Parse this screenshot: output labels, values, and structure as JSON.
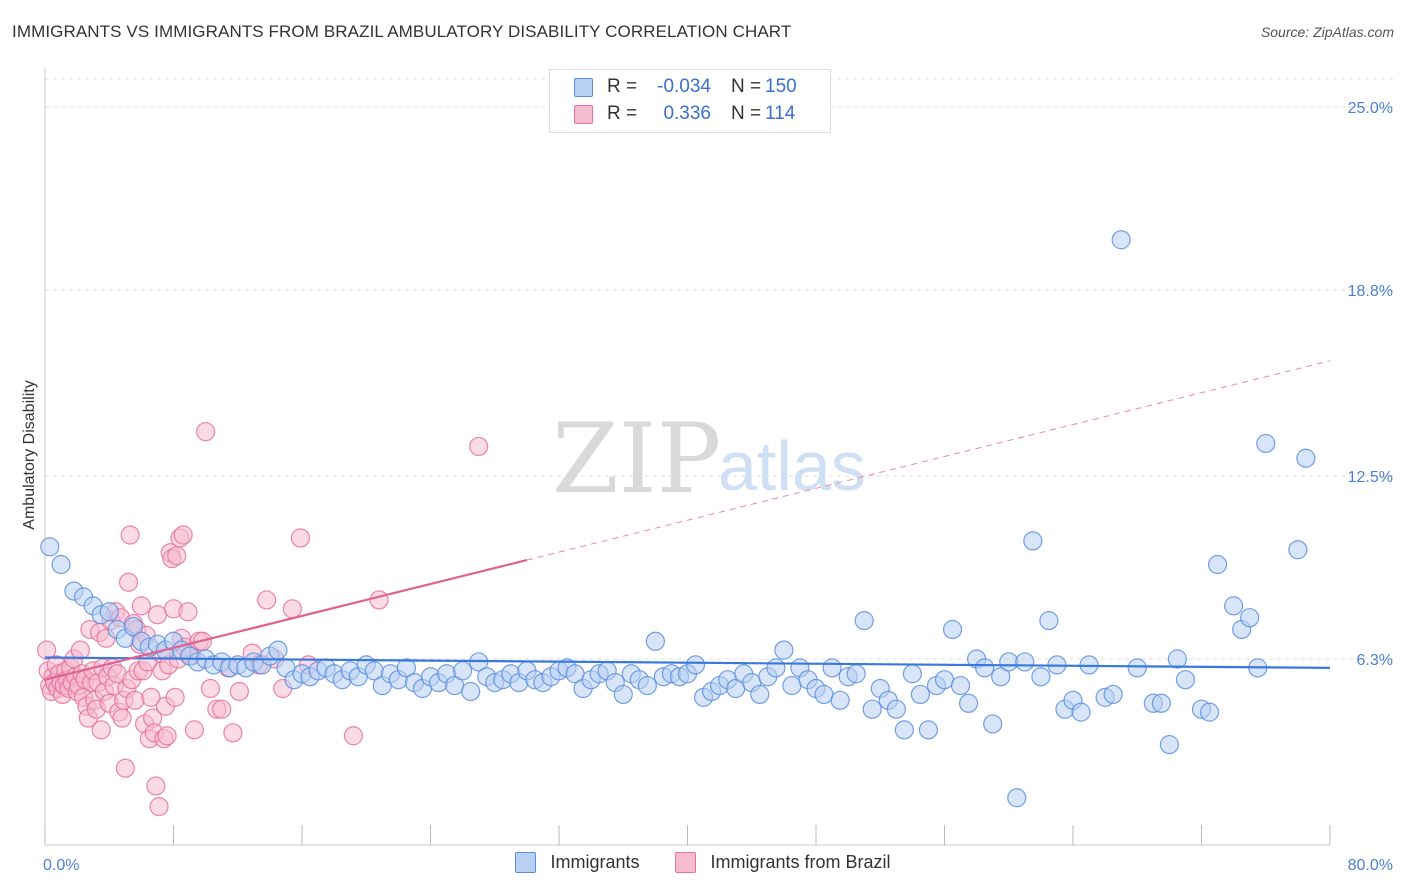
{
  "title": "IMMIGRANTS VS IMMIGRANTS FROM BRAZIL AMBULATORY DISABILITY CORRELATION CHART",
  "source": "Source: ZipAtlas.com",
  "watermark": {
    "part1": "ZIP",
    "part2": "atlas"
  },
  "legend": {
    "rows": [
      {
        "r_label": "R =",
        "r_value": "-0.034",
        "n_label": "N =",
        "n_value": "150"
      },
      {
        "r_label": "R =",
        "r_value": "0.336",
        "n_label": "N =",
        "n_value": "114"
      }
    ]
  },
  "colors": {
    "blue": "#5a8fe0",
    "blue_fill": "#b8d0f2",
    "pink": "#e8709a",
    "pink_fill": "#f5bcd0",
    "grid": "#dddddd",
    "axis_text": "#4a7fd4"
  },
  "chart_data": {
    "type": "scatter",
    "title": "IMMIGRANTS VS IMMIGRANTS FROM BRAZIL AMBULATORY DISABILITY CORRELATION CHART",
    "xlabel": "",
    "ylabel": "Ambulatory Disability",
    "xlim": [
      0,
      80
    ],
    "ylim": [
      0,
      26.25
    ],
    "x_tick_labels": [
      "0.0%",
      "80.0%"
    ],
    "y_ticks": [
      6.3,
      12.5,
      18.8,
      25.0
    ],
    "y_tick_labels": [
      "6.3%",
      "12.5%",
      "18.8%",
      "25.0%"
    ],
    "legend_labels": [
      "Immigrants",
      "Immigrants from Brazil"
    ],
    "series": [
      {
        "name": "Immigrants",
        "r": -0.034,
        "n": 150,
        "trend": {
          "x": [
            0,
            80
          ],
          "y": [
            6.35,
            6.0
          ],
          "dashed_from": null
        },
        "points": [
          [
            0.3,
            10.1
          ],
          [
            1,
            9.5
          ],
          [
            1.8,
            8.6
          ],
          [
            2.4,
            8.4
          ],
          [
            3,
            8.1
          ],
          [
            3.5,
            7.8
          ],
          [
            4,
            7.9
          ],
          [
            4.5,
            7.3
          ],
          [
            5,
            7.0
          ],
          [
            5.5,
            7.4
          ],
          [
            6,
            6.9
          ],
          [
            6.5,
            6.7
          ],
          [
            7,
            6.8
          ],
          [
            7.5,
            6.6
          ],
          [
            8,
            6.9
          ],
          [
            8.5,
            6.6
          ],
          [
            9,
            6.4
          ],
          [
            9.5,
            6.2
          ],
          [
            10,
            6.3
          ],
          [
            10.5,
            6.1
          ],
          [
            11,
            6.2
          ],
          [
            11.5,
            6.0
          ],
          [
            12,
            6.1
          ],
          [
            12.5,
            6.0
          ],
          [
            13,
            6.2
          ],
          [
            13.5,
            6.1
          ],
          [
            14,
            6.4
          ],
          [
            14.5,
            6.6
          ],
          [
            15,
            6.0
          ],
          [
            15.5,
            5.6
          ],
          [
            16,
            5.8
          ],
          [
            16.5,
            5.7
          ],
          [
            17,
            5.9
          ],
          [
            17.5,
            6.0
          ],
          [
            18,
            5.8
          ],
          [
            18.5,
            5.6
          ],
          [
            19,
            5.9
          ],
          [
            19.5,
            5.7
          ],
          [
            20,
            6.1
          ],
          [
            20.5,
            5.9
          ],
          [
            21,
            5.4
          ],
          [
            21.5,
            5.8
          ],
          [
            22,
            5.6
          ],
          [
            22.5,
            6.0
          ],
          [
            23,
            5.5
          ],
          [
            23.5,
            5.3
          ],
          [
            24,
            5.7
          ],
          [
            24.5,
            5.5
          ],
          [
            25,
            5.8
          ],
          [
            25.5,
            5.4
          ],
          [
            26,
            5.9
          ],
          [
            26.5,
            5.2
          ],
          [
            27,
            6.2
          ],
          [
            27.5,
            5.7
          ],
          [
            28,
            5.5
          ],
          [
            28.5,
            5.6
          ],
          [
            29,
            5.8
          ],
          [
            29.5,
            5.5
          ],
          [
            30,
            5.9
          ],
          [
            30.5,
            5.6
          ],
          [
            31,
            5.5
          ],
          [
            31.5,
            5.7
          ],
          [
            32,
            5.9
          ],
          [
            32.5,
            6.0
          ],
          [
            33,
            5.8
          ],
          [
            33.5,
            5.3
          ],
          [
            34,
            5.6
          ],
          [
            34.5,
            5.8
          ],
          [
            35,
            5.9
          ],
          [
            35.5,
            5.5
          ],
          [
            36,
            5.1
          ],
          [
            36.5,
            5.8
          ],
          [
            37,
            5.6
          ],
          [
            37.5,
            5.4
          ],
          [
            38,
            6.9
          ],
          [
            38.5,
            5.7
          ],
          [
            39,
            5.8
          ],
          [
            39.5,
            5.7
          ],
          [
            40,
            5.8
          ],
          [
            40.5,
            6.1
          ],
          [
            41,
            5.0
          ],
          [
            41.5,
            5.2
          ],
          [
            42,
            5.4
          ],
          [
            42.5,
            5.6
          ],
          [
            43,
            5.3
          ],
          [
            43.5,
            5.8
          ],
          [
            44,
            5.5
          ],
          [
            44.5,
            5.1
          ],
          [
            45,
            5.7
          ],
          [
            45.5,
            6.0
          ],
          [
            46,
            6.6
          ],
          [
            46.5,
            5.4
          ],
          [
            47,
            6.0
          ],
          [
            47.5,
            5.6
          ],
          [
            48,
            5.3
          ],
          [
            48.5,
            5.1
          ],
          [
            49,
            6.0
          ],
          [
            49.5,
            4.9
          ],
          [
            50,
            5.7
          ],
          [
            50.5,
            5.8
          ],
          [
            51,
            7.6
          ],
          [
            51.5,
            4.6
          ],
          [
            52,
            5.3
          ],
          [
            52.5,
            4.9
          ],
          [
            53,
            4.6
          ],
          [
            53.5,
            3.9
          ],
          [
            54,
            5.8
          ],
          [
            54.5,
            5.1
          ],
          [
            55,
            3.9
          ],
          [
            55.5,
            5.4
          ],
          [
            56,
            5.6
          ],
          [
            56.5,
            7.3
          ],
          [
            57,
            5.4
          ],
          [
            57.5,
            4.8
          ],
          [
            58,
            6.3
          ],
          [
            58.5,
            6.0
          ],
          [
            59,
            4.1
          ],
          [
            59.5,
            5.7
          ],
          [
            60,
            6.2
          ],
          [
            60.5,
            1.6
          ],
          [
            61,
            6.2
          ],
          [
            61.5,
            10.3
          ],
          [
            62,
            5.7
          ],
          [
            62.5,
            7.6
          ],
          [
            63,
            6.1
          ],
          [
            63.5,
            4.6
          ],
          [
            64,
            4.9
          ],
          [
            64.5,
            4.5
          ],
          [
            65,
            6.1
          ],
          [
            66,
            5.0
          ],
          [
            66.5,
            5.1
          ],
          [
            67,
            20.5
          ],
          [
            68,
            6.0
          ],
          [
            69,
            4.8
          ],
          [
            69.5,
            4.8
          ],
          [
            70,
            3.4
          ],
          [
            70.5,
            6.3
          ],
          [
            71,
            5.6
          ],
          [
            72,
            4.6
          ],
          [
            72.5,
            4.5
          ],
          [
            73,
            9.5
          ],
          [
            74,
            8.1
          ],
          [
            74.5,
            7.3
          ],
          [
            75,
            7.7
          ],
          [
            75.5,
            6.0
          ],
          [
            76,
            13.6
          ],
          [
            78,
            10.0
          ],
          [
            78.5,
            13.1
          ]
        ]
      },
      {
        "name": "Immigrants from Brazil",
        "r": 0.336,
        "n": 114,
        "trend": {
          "x": [
            0,
            80
          ],
          "y": [
            5.6,
            16.4
          ],
          "dashed_from": 30
        },
        "points": [
          [
            0.1,
            6.6
          ],
          [
            0.2,
            5.9
          ],
          [
            0.3,
            5.4
          ],
          [
            0.4,
            5.2
          ],
          [
            0.5,
            5.7
          ],
          [
            0.6,
            5.5
          ],
          [
            0.7,
            6.1
          ],
          [
            0.8,
            5.3
          ],
          [
            0.9,
            5.8
          ],
          [
            1.0,
            5.5
          ],
          [
            1.1,
            5.1
          ],
          [
            1.2,
            5.4
          ],
          [
            1.3,
            5.9
          ],
          [
            1.4,
            5.6
          ],
          [
            1.5,
            5.3
          ],
          [
            1.6,
            6.0
          ],
          [
            1.7,
            5.5
          ],
          [
            1.8,
            6.3
          ],
          [
            1.9,
            5.7
          ],
          [
            2.0,
            5.2
          ],
          [
            2.1,
            5.4
          ],
          [
            2.2,
            6.6
          ],
          [
            2.3,
            5.8
          ],
          [
            2.4,
            5.0
          ],
          [
            2.5,
            5.6
          ],
          [
            2.6,
            4.7
          ],
          [
            2.7,
            4.3
          ],
          [
            2.8,
            7.3
          ],
          [
            2.9,
            5.5
          ],
          [
            3.0,
            5.9
          ],
          [
            3.1,
            4.9
          ],
          [
            3.2,
            4.6
          ],
          [
            3.3,
            5.5
          ],
          [
            3.4,
            7.2
          ],
          [
            3.5,
            3.9
          ],
          [
            3.6,
            6.0
          ],
          [
            3.7,
            5.2
          ],
          [
            3.8,
            7.0
          ],
          [
            3.9,
            5.7
          ],
          [
            4.0,
            4.8
          ],
          [
            4.1,
            7.6
          ],
          [
            4.2,
            6.0
          ],
          [
            4.3,
            5.4
          ],
          [
            4.4,
            7.9
          ],
          [
            4.5,
            5.8
          ],
          [
            4.6,
            4.5
          ],
          [
            4.7,
            7.7
          ],
          [
            4.8,
            4.3
          ],
          [
            4.9,
            4.9
          ],
          [
            5.0,
            2.6
          ],
          [
            5.1,
            5.3
          ],
          [
            5.2,
            8.9
          ],
          [
            5.3,
            10.5
          ],
          [
            5.4,
            5.6
          ],
          [
            5.5,
            7.5
          ],
          [
            5.6,
            4.9
          ],
          [
            5.7,
            7.3
          ],
          [
            5.8,
            5.9
          ],
          [
            5.9,
            6.8
          ],
          [
            6.0,
            8.1
          ],
          [
            6.1,
            5.9
          ],
          [
            6.2,
            4.1
          ],
          [
            6.3,
            7.1
          ],
          [
            6.4,
            6.2
          ],
          [
            6.5,
            3.6
          ],
          [
            6.6,
            5.0
          ],
          [
            6.7,
            4.3
          ],
          [
            6.8,
            3.8
          ],
          [
            6.9,
            2.0
          ],
          [
            7.0,
            7.8
          ],
          [
            7.1,
            1.3
          ],
          [
            7.2,
            6.5
          ],
          [
            7.3,
            5.9
          ],
          [
            7.4,
            3.6
          ],
          [
            7.5,
            4.7
          ],
          [
            7.6,
            3.7
          ],
          [
            7.7,
            6.1
          ],
          [
            7.8,
            9.9
          ],
          [
            7.9,
            9.7
          ],
          [
            8.0,
            8.0
          ],
          [
            8.1,
            5.0
          ],
          [
            8.2,
            9.8
          ],
          [
            8.3,
            6.3
          ],
          [
            8.4,
            10.4
          ],
          [
            8.5,
            7.0
          ],
          [
            8.6,
            10.5
          ],
          [
            8.7,
            6.7
          ],
          [
            8.9,
            7.9
          ],
          [
            9.1,
            6.4
          ],
          [
            9.3,
            3.9
          ],
          [
            9.6,
            6.9
          ],
          [
            9.8,
            6.9
          ],
          [
            10.0,
            14.0
          ],
          [
            10.3,
            5.3
          ],
          [
            10.7,
            4.6
          ],
          [
            11.0,
            4.6
          ],
          [
            11.4,
            6.0
          ],
          [
            11.7,
            3.8
          ],
          [
            12.1,
            5.2
          ],
          [
            12.9,
            6.5
          ],
          [
            13.3,
            6.1
          ],
          [
            13.8,
            8.3
          ],
          [
            14.3,
            6.3
          ],
          [
            14.8,
            5.3
          ],
          [
            15.4,
            8.0
          ],
          [
            15.9,
            10.4
          ],
          [
            16.4,
            6.1
          ],
          [
            19.2,
            3.7
          ],
          [
            20.8,
            8.3
          ],
          [
            27.0,
            13.5
          ]
        ]
      }
    ]
  }
}
